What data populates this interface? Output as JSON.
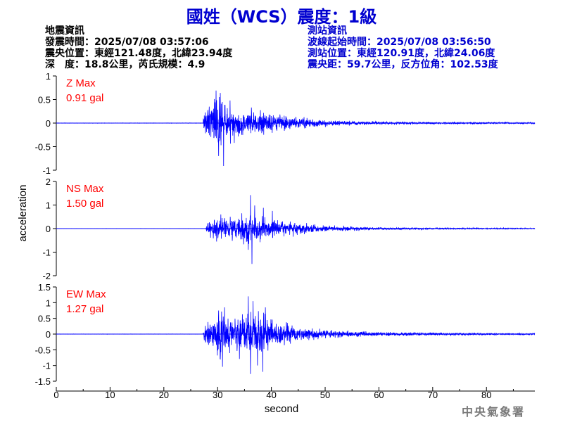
{
  "header": {
    "title": "國姓（WCS）震度：1級",
    "quake_info": {
      "heading": "地震資訊",
      "origin_time": "發震時間：2025/07/08 03:57:06",
      "epicenter": "震央位置：東經121.48度，北緯23.94度",
      "depth_magnitude": "深　度：18.8公里，芮氏規模：4.9"
    },
    "station_info": {
      "heading": "測站資訊",
      "wave_start": "波線起始時間：2025/07/08 03:56:50",
      "station_location": "測站位置：東經120.91度，北緯24.06度",
      "distance": "震央距：59.7公里，反方位角：102.53度"
    }
  },
  "footer": {
    "agency": "中央氣象署"
  },
  "colors": {
    "trace": "#0000ff",
    "max_label": "#ff0000",
    "title": "#0000d0",
    "axis": "#000000"
  },
  "chart_data": {
    "type": "line",
    "xlabel": "second",
    "ylabel": "acceleration",
    "xlim": [
      0,
      89
    ],
    "x_ticks": [
      "0",
      "10",
      "20",
      "30",
      "40",
      "50",
      "60",
      "70",
      "80"
    ],
    "grid": false,
    "panels": [
      {
        "name": "Z",
        "max_title": "Z Max",
        "max_value": "0.91 gal",
        "ylim": [
          -1,
          1
        ],
        "y_ticks": [
          "1",
          "0.5",
          "0",
          "-0.5",
          "-1"
        ],
        "envelope": [
          [
            0,
            0.004
          ],
          [
            27.3,
            0.005
          ],
          [
            27.5,
            0.35
          ],
          [
            28.2,
            0.45
          ],
          [
            29,
            0.55
          ],
          [
            29.8,
            0.62
          ],
          [
            30.3,
            0.85
          ],
          [
            31,
            0.45
          ],
          [
            32,
            0.4
          ],
          [
            34,
            0.3
          ],
          [
            36,
            0.27
          ],
          [
            38,
            0.25
          ],
          [
            40,
            0.22
          ],
          [
            42,
            0.18
          ],
          [
            45,
            0.13
          ],
          [
            50,
            0.08
          ],
          [
            55,
            0.05
          ],
          [
            60,
            0.035
          ],
          [
            70,
            0.025
          ],
          [
            80,
            0.02
          ],
          [
            89,
            0.015
          ]
        ],
        "peaks": [
          [
            29.7,
            0.69
          ],
          [
            30.2,
            -0.7
          ],
          [
            30.5,
            0.64
          ],
          [
            31.1,
            -0.91
          ],
          [
            32.3,
            0.48
          ],
          [
            33.1,
            -0.42
          ],
          [
            36.3,
            0.33
          ]
        ]
      },
      {
        "name": "NS",
        "max_title": "NS Max",
        "max_value": "1.50 gal",
        "ylim": [
          -2,
          2
        ],
        "y_ticks": [
          "2",
          "1",
          "0",
          "-1",
          "-2"
        ],
        "envelope": [
          [
            0,
            0.005
          ],
          [
            27.8,
            0.005
          ],
          [
            28,
            0.35
          ],
          [
            29,
            0.5
          ],
          [
            30,
            0.55
          ],
          [
            31,
            0.5
          ],
          [
            32,
            0.55
          ],
          [
            33,
            0.6
          ],
          [
            34,
            0.62
          ],
          [
            35,
            0.7
          ],
          [
            36,
            0.8
          ],
          [
            37,
            0.62
          ],
          [
            38,
            0.58
          ],
          [
            39,
            0.52
          ],
          [
            40,
            0.45
          ],
          [
            42,
            0.38
          ],
          [
            44,
            0.3
          ],
          [
            47,
            0.2
          ],
          [
            50,
            0.14
          ],
          [
            55,
            0.09
          ],
          [
            60,
            0.06
          ],
          [
            70,
            0.04
          ],
          [
            80,
            0.03
          ],
          [
            89,
            0.025
          ]
        ],
        "peaks": [
          [
            29.8,
            -0.55
          ],
          [
            30.6,
            0.6
          ],
          [
            34.5,
            0.65
          ],
          [
            35.7,
            -0.9
          ],
          [
            36.1,
            1.42
          ],
          [
            36.4,
            -1.5
          ],
          [
            36.9,
            0.98
          ],
          [
            38.5,
            0.88
          ],
          [
            40.2,
            0.75
          ]
        ]
      },
      {
        "name": "EW",
        "max_title": "EW Max",
        "max_value": "1.27 gal",
        "ylim": [
          -1.5,
          1.5
        ],
        "y_ticks": [
          "1.5",
          "1",
          "0.5",
          "0",
          "-0.5",
          "-1",
          "-1.5"
        ],
        "envelope": [
          [
            0,
            0.005
          ],
          [
            27.3,
            0.005
          ],
          [
            27.5,
            0.3
          ],
          [
            28.5,
            0.4
          ],
          [
            29.5,
            0.55
          ],
          [
            30,
            0.75
          ],
          [
            30.8,
            0.95
          ],
          [
            31.5,
            0.6
          ],
          [
            32.5,
            0.55
          ],
          [
            34,
            0.6
          ],
          [
            35.5,
            0.8
          ],
          [
            36.2,
            1.05
          ],
          [
            37,
            0.85
          ],
          [
            38,
            0.8
          ],
          [
            39,
            0.6
          ],
          [
            40,
            0.5
          ],
          [
            42,
            0.38
          ],
          [
            45,
            0.25
          ],
          [
            50,
            0.15
          ],
          [
            55,
            0.1
          ],
          [
            60,
            0.07
          ],
          [
            70,
            0.05
          ],
          [
            80,
            0.035
          ],
          [
            89,
            0.03
          ]
        ],
        "peaks": [
          [
            30.2,
            0.75
          ],
          [
            30.9,
            -1.04
          ],
          [
            31.3,
            0.85
          ],
          [
            35.7,
            1.2
          ],
          [
            36.1,
            -1.27
          ],
          [
            36.6,
            1.05
          ],
          [
            37.4,
            -1.0
          ],
          [
            38.4,
            -1.2
          ],
          [
            38.9,
            0.85
          ]
        ]
      }
    ]
  }
}
